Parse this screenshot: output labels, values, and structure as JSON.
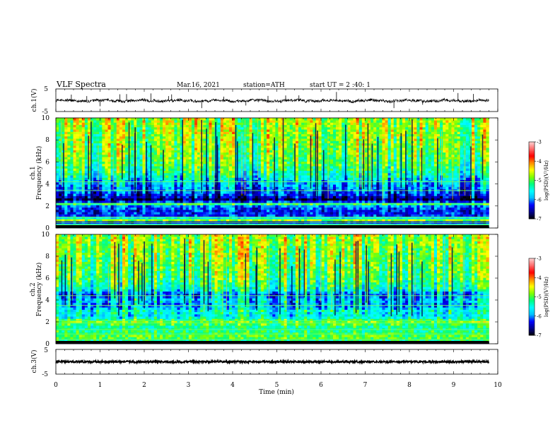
{
  "header": {
    "title": "VLF Spectra",
    "date": "Mar.16, 2021",
    "station": "station=ATH",
    "start_ut": "start UT =  2 :40: 1"
  },
  "chart_data": [
    {
      "type": "line",
      "name": "ch1-waveform",
      "ylabel": "ch.1(V)",
      "ylim": [
        -5,
        5
      ],
      "y_ticks": [
        "5",
        "-5"
      ],
      "xlim": [
        0,
        10
      ],
      "data_extent_min": 9.8,
      "baseline_v": -0.2,
      "noise_amplitude_v": 0.6,
      "spike_times_min": [
        0.35,
        0.7,
        1.0,
        1.45,
        1.6,
        2.15,
        2.55,
        2.62,
        3.3,
        3.8,
        4.3,
        4.8,
        5.2,
        5.5,
        6.35,
        7.65,
        8.3,
        9.1,
        9.45
      ]
    },
    {
      "type": "heatmap",
      "name": "ch1-spectrogram",
      "channel_label": "ch.1",
      "ylabel": "Frequency (kHz)",
      "ylim": [
        0,
        10
      ],
      "y_ticks": [
        "0",
        "2",
        "4",
        "6",
        "8",
        "10"
      ],
      "xlim": [
        0,
        10
      ],
      "data_extent_min": 9.8,
      "colorbar": {
        "label": "log(PSD)(V²/Hz)",
        "range": [
          -7,
          -3
        ],
        "ticks": [
          "-3",
          "-4",
          "-5",
          "-6",
          "-7"
        ],
        "colors": [
          "#000000",
          "#00008b",
          "#0000ff",
          "#00bfff",
          "#00ffff",
          "#00ff7f",
          "#7fff00",
          "#ffff00",
          "#ff8c00",
          "#ff0000",
          "#ff6a6a",
          "#ffd0d0"
        ]
      },
      "freq_profile": [
        {
          "f": 0.0,
          "v": -6.9
        },
        {
          "f": 0.2,
          "v": -5.0
        },
        {
          "f": 0.5,
          "v": -6.6
        },
        {
          "f": 0.8,
          "v": -4.2
        },
        {
          "f": 1.0,
          "v": -6.2
        },
        {
          "f": 1.5,
          "v": -6.3
        },
        {
          "f": 2.0,
          "v": -6.0
        },
        {
          "f": 2.2,
          "v": -5.0
        },
        {
          "f": 2.5,
          "v": -6.9
        },
        {
          "f": 3.0,
          "v": -6.3
        },
        {
          "f": 4.0,
          "v": -5.8
        },
        {
          "f": 5.0,
          "v": -5.3
        },
        {
          "f": 6.0,
          "v": -5.0
        },
        {
          "f": 8.0,
          "v": -4.8
        },
        {
          "f": 10.0,
          "v": -4.7
        }
      ],
      "lines_khz": [
        0.3,
        0.5,
        0.8,
        1.0,
        2.2,
        3.4,
        4.2
      ]
    },
    {
      "type": "heatmap",
      "name": "ch2-spectrogram",
      "channel_label": "ch.2",
      "ylabel": "Frequency (kHz)",
      "ylim": [
        0,
        10
      ],
      "y_ticks": [
        "0",
        "2",
        "4",
        "6",
        "8",
        "10"
      ],
      "xlim": [
        0,
        10
      ],
      "data_extent_min": 9.8,
      "colorbar": {
        "label": "log(PSD)(V²/Hz)",
        "range": [
          -7,
          -3
        ],
        "ticks": [
          "-3",
          "-4",
          "-5",
          "-6",
          "-7"
        ],
        "colors": [
          "#000000",
          "#00008b",
          "#0000ff",
          "#00bfff",
          "#00ffff",
          "#00ff7f",
          "#7fff00",
          "#ffff00",
          "#ff8c00",
          "#ff0000",
          "#ff6a6a",
          "#ffd0d0"
        ]
      },
      "freq_profile": [
        {
          "f": 0.0,
          "v": -6.9
        },
        {
          "f": 0.3,
          "v": -5.2
        },
        {
          "f": 0.6,
          "v": -4.9
        },
        {
          "f": 1.0,
          "v": -5.1
        },
        {
          "f": 1.5,
          "v": -5.3
        },
        {
          "f": 2.0,
          "v": -4.8
        },
        {
          "f": 2.5,
          "v": -5.6
        },
        {
          "f": 3.0,
          "v": -5.4
        },
        {
          "f": 3.5,
          "v": -5.9
        },
        {
          "f": 4.0,
          "v": -5.6
        },
        {
          "f": 4.5,
          "v": -6.0
        },
        {
          "f": 5.0,
          "v": -5.3
        },
        {
          "f": 6.0,
          "v": -5.0
        },
        {
          "f": 8.0,
          "v": -4.8
        },
        {
          "f": 10.0,
          "v": -4.7
        }
      ],
      "lines_khz": [
        0.4,
        0.9,
        1.3,
        1.9,
        2.1,
        3.5,
        4.4
      ]
    },
    {
      "type": "line",
      "name": "ch3-waveform",
      "ylabel": "ch.3(V)",
      "ylim": [
        -5,
        5
      ],
      "y_ticks": [
        "5",
        "-5"
      ],
      "xlim": [
        0,
        10
      ],
      "data_extent_min": 9.8,
      "baseline_v": 0.0,
      "noise_amplitude_v": 0.4
    }
  ],
  "x_axis": {
    "label": "Time (min)",
    "ticks": [
      "0",
      "1",
      "2",
      "3",
      "4",
      "5",
      "6",
      "7",
      "8",
      "9",
      "10"
    ]
  }
}
